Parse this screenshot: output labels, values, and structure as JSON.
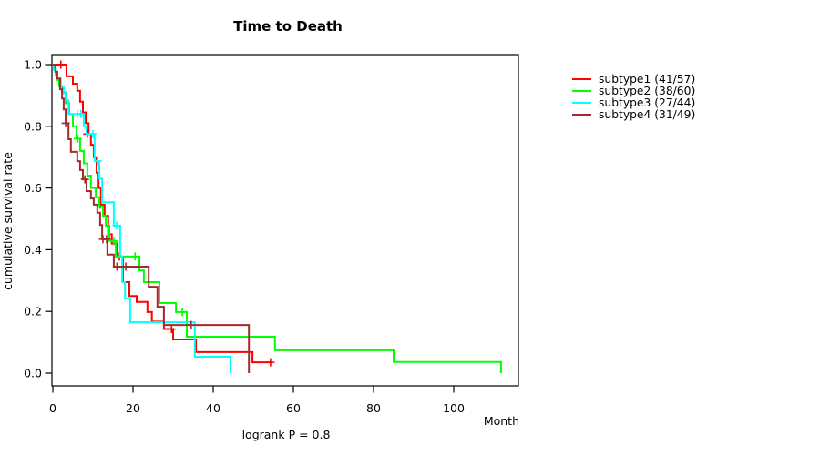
{
  "chart_data": {
    "type": "line",
    "subtype_plot": "kaplan-meier-step",
    "title": "Time to Death",
    "xlabel": "Month",
    "ylabel": "cumulative survival rate",
    "annotation": "logrank P = 0.8",
    "logrank_p": 0.8,
    "x_ticks": [
      0,
      20,
      40,
      60,
      80,
      100
    ],
    "y_ticks": [
      0.0,
      0.2,
      0.4,
      0.6,
      0.8,
      1.0
    ],
    "xlim": [
      0,
      116
    ],
    "ylim": [
      0,
      1
    ],
    "grid": false,
    "legend_position": "right",
    "series": [
      {
        "label": "subtype1 (41/57)",
        "name": "subtype1",
        "events": 41,
        "total": 57,
        "color": "#ff0000",
        "steps": [
          [
            0,
            1.0
          ],
          [
            3.4,
            0.962
          ],
          [
            5.0,
            0.938
          ],
          [
            6.1,
            0.915
          ],
          [
            6.8,
            0.88
          ],
          [
            7.5,
            0.845
          ],
          [
            8.2,
            0.81
          ],
          [
            8.9,
            0.775
          ],
          [
            9.5,
            0.74
          ],
          [
            10.2,
            0.7
          ],
          [
            10.9,
            0.65
          ],
          [
            11.4,
            0.6
          ],
          [
            12.0,
            0.546
          ],
          [
            12.9,
            0.51
          ],
          [
            13.8,
            0.45
          ],
          [
            14.7,
            0.42
          ],
          [
            15.9,
            0.378
          ],
          [
            17.5,
            0.295
          ],
          [
            19.1,
            0.25
          ],
          [
            20.9,
            0.231
          ],
          [
            23.6,
            0.198
          ],
          [
            24.7,
            0.167
          ],
          [
            27.7,
            0.143
          ],
          [
            30.0,
            0.109
          ],
          [
            35.7,
            0.068
          ],
          [
            49.8,
            0.035
          ],
          [
            54.5,
            0.035
          ]
        ],
        "censors": [
          [
            2.0,
            1.0
          ],
          [
            8.6,
            0.775
          ],
          [
            11.8,
            0.546
          ],
          [
            16.6,
            0.378
          ],
          [
            29.6,
            0.143
          ],
          [
            54.3,
            0.035
          ]
        ]
      },
      {
        "label": "subtype2 (38/60)",
        "name": "subtype2",
        "events": 38,
        "total": 60,
        "color": "#00ff00",
        "steps": [
          [
            0,
            1.0
          ],
          [
            0.3,
            0.983
          ],
          [
            0.7,
            0.967
          ],
          [
            1.1,
            0.95
          ],
          [
            1.6,
            0.93
          ],
          [
            2.3,
            0.91
          ],
          [
            3.2,
            0.875
          ],
          [
            4.1,
            0.84
          ],
          [
            5.0,
            0.8
          ],
          [
            5.9,
            0.76
          ],
          [
            6.8,
            0.72
          ],
          [
            7.7,
            0.68
          ],
          [
            8.6,
            0.64
          ],
          [
            9.5,
            0.6
          ],
          [
            10.7,
            0.57
          ],
          [
            11.6,
            0.54
          ],
          [
            12.5,
            0.51
          ],
          [
            13.2,
            0.478
          ],
          [
            14.1,
            0.428
          ],
          [
            15.7,
            0.378
          ],
          [
            21.6,
            0.333
          ],
          [
            22.7,
            0.295
          ],
          [
            26.6,
            0.227
          ],
          [
            30.7,
            0.198
          ],
          [
            33.4,
            0.118
          ],
          [
            55.4,
            0.074
          ],
          [
            85.0,
            0.036
          ],
          [
            111.8,
            0.0
          ]
        ],
        "censors": [
          [
            6.2,
            0.76
          ],
          [
            15.2,
            0.428
          ],
          [
            20.5,
            0.378
          ],
          [
            32.3,
            0.198
          ]
        ]
      },
      {
        "label": "subtype3 (27/44)",
        "name": "subtype3",
        "events": 27,
        "total": 44,
        "color": "#00ffff",
        "steps": [
          [
            0,
            1.0
          ],
          [
            0.5,
            0.977
          ],
          [
            1.1,
            0.955
          ],
          [
            2.0,
            0.93
          ],
          [
            2.7,
            0.907
          ],
          [
            3.4,
            0.884
          ],
          [
            3.9,
            0.84
          ],
          [
            7.7,
            0.8
          ],
          [
            8.4,
            0.775
          ],
          [
            10.4,
            0.687
          ],
          [
            11.6,
            0.63
          ],
          [
            12.3,
            0.554
          ],
          [
            15.2,
            0.478
          ],
          [
            16.8,
            0.378
          ],
          [
            17.3,
            0.295
          ],
          [
            18.0,
            0.242
          ],
          [
            19.3,
            0.165
          ],
          [
            35.4,
            0.053
          ],
          [
            44.3,
            0.0
          ]
        ],
        "censors": [
          [
            6.1,
            0.84
          ],
          [
            7.0,
            0.84
          ],
          [
            10.0,
            0.775
          ],
          [
            11.2,
            0.687
          ],
          [
            15.9,
            0.478
          ]
        ]
      },
      {
        "label": "subtype4 (31/49)",
        "name": "subtype4",
        "events": 31,
        "total": 49,
        "color": "#a52a2a",
        "steps": [
          [
            0,
            1.0
          ],
          [
            0.7,
            0.977
          ],
          [
            1.1,
            0.955
          ],
          [
            1.8,
            0.92
          ],
          [
            2.3,
            0.89
          ],
          [
            2.7,
            0.855
          ],
          [
            3.2,
            0.81
          ],
          [
            3.9,
            0.758
          ],
          [
            4.5,
            0.717
          ],
          [
            6.1,
            0.687
          ],
          [
            6.8,
            0.658
          ],
          [
            7.5,
            0.628
          ],
          [
            8.4,
            0.59
          ],
          [
            9.5,
            0.566
          ],
          [
            10.2,
            0.546
          ],
          [
            11.1,
            0.52
          ],
          [
            11.8,
            0.48
          ],
          [
            12.3,
            0.434
          ],
          [
            13.6,
            0.384
          ],
          [
            15.2,
            0.345
          ],
          [
            23.9,
            0.28
          ],
          [
            26.1,
            0.215
          ],
          [
            27.7,
            0.156
          ],
          [
            48.9,
            0.0
          ]
        ],
        "censors": [
          [
            3.2,
            0.81
          ],
          [
            8.0,
            0.628
          ],
          [
            12.5,
            0.434
          ],
          [
            13.4,
            0.434
          ],
          [
            16.0,
            0.345
          ],
          [
            18.2,
            0.345
          ],
          [
            34.5,
            0.156
          ]
        ]
      }
    ]
  }
}
